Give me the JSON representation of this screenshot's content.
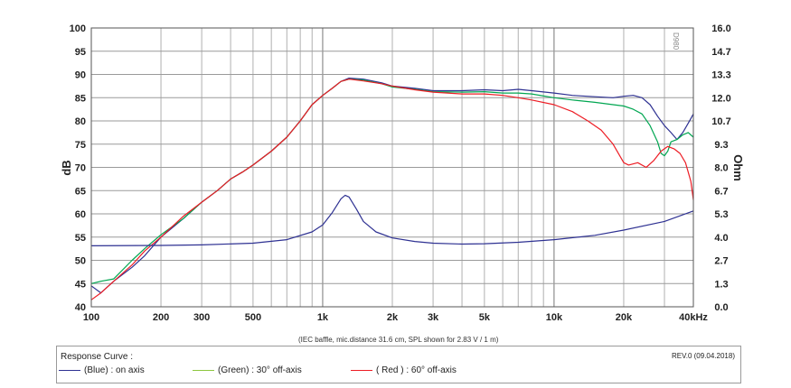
{
  "chart_data": {
    "type": "line",
    "x_scale": "log",
    "xlim": [
      100,
      40000
    ],
    "ylim_left": [
      40,
      100
    ],
    "ylim_right": [
      0.0,
      16.0
    ],
    "ylabel_left": "dB",
    "ylabel_right": "Ohm",
    "x_ticks": [
      {
        "v": 100,
        "label": "100"
      },
      {
        "v": 200,
        "label": "200"
      },
      {
        "v": 300,
        "label": "300"
      },
      {
        "v": 500,
        "label": "500"
      },
      {
        "v": 1000,
        "label": "1k"
      },
      {
        "v": 2000,
        "label": "2k"
      },
      {
        "v": 3000,
        "label": "3k"
      },
      {
        "v": 5000,
        "label": "5k"
      },
      {
        "v": 10000,
        "label": "10k"
      },
      {
        "v": 20000,
        "label": "20k"
      },
      {
        "v": 40000,
        "label": "40kHz"
      }
    ],
    "y_ticks_left": [
      "100",
      "95",
      "90",
      "85",
      "80",
      "75",
      "70",
      "65",
      "60",
      "55",
      "50",
      "45",
      "40"
    ],
    "y_ticks_right": [
      "16.0",
      "14.7",
      "13.3",
      "12.0",
      "10.7",
      "9.3",
      "8.0",
      "6.7",
      "5.3",
      "4.0",
      "2.7",
      "1.3",
      "0.0"
    ],
    "series": [
      {
        "name": "on axis",
        "color": "#2e3192",
        "axis": "left",
        "points": [
          [
            100,
            44.5
          ],
          [
            110,
            43
          ],
          [
            125,
            45.5
          ],
          [
            150,
            48.5
          ],
          [
            170,
            51
          ],
          [
            200,
            55
          ],
          [
            250,
            59
          ],
          [
            300,
            62.5
          ],
          [
            350,
            65
          ],
          [
            400,
            67.5
          ],
          [
            450,
            69
          ],
          [
            500,
            70.5
          ],
          [
            600,
            73.5
          ],
          [
            700,
            76.5
          ],
          [
            800,
            80
          ],
          [
            900,
            83.5
          ],
          [
            1000,
            85.5
          ],
          [
            1100,
            87
          ],
          [
            1200,
            88.5
          ],
          [
            1300,
            89.2
          ],
          [
            1500,
            89
          ],
          [
            1800,
            88.2
          ],
          [
            2000,
            87.5
          ],
          [
            2500,
            87
          ],
          [
            3000,
            86.5
          ],
          [
            4000,
            86.5
          ],
          [
            5000,
            86.7
          ],
          [
            6000,
            86.5
          ],
          [
            7000,
            86.8
          ],
          [
            8000,
            86.5
          ],
          [
            10000,
            86
          ],
          [
            12000,
            85.5
          ],
          [
            15000,
            85.2
          ],
          [
            18000,
            85
          ],
          [
            20000,
            85.3
          ],
          [
            22000,
            85.5
          ],
          [
            24000,
            85
          ],
          [
            26000,
            83.5
          ],
          [
            28000,
            81
          ],
          [
            30000,
            79
          ],
          [
            32000,
            77.5
          ],
          [
            34000,
            76
          ],
          [
            36000,
            77.5
          ],
          [
            38000,
            79.5
          ],
          [
            40000,
            81.5
          ]
        ]
      },
      {
        "name": "30° off-axis",
        "color": "#00a651",
        "axis": "left",
        "points": [
          [
            100,
            45
          ],
          [
            110,
            45.5
          ],
          [
            125,
            46
          ],
          [
            150,
            50
          ],
          [
            170,
            52.5
          ],
          [
            200,
            55.5
          ],
          [
            250,
            59
          ],
          [
            300,
            62.5
          ],
          [
            350,
            65
          ],
          [
            400,
            67.5
          ],
          [
            450,
            69
          ],
          [
            500,
            70.5
          ],
          [
            600,
            73.5
          ],
          [
            700,
            76.5
          ],
          [
            800,
            80
          ],
          [
            900,
            83.5
          ],
          [
            1000,
            85.5
          ],
          [
            1100,
            87
          ],
          [
            1200,
            88.5
          ],
          [
            1300,
            89
          ],
          [
            1500,
            88.8
          ],
          [
            1800,
            88
          ],
          [
            2000,
            87.3
          ],
          [
            2500,
            86.8
          ],
          [
            3000,
            86.3
          ],
          [
            4000,
            86.2
          ],
          [
            5000,
            86.3
          ],
          [
            6000,
            86
          ],
          [
            7000,
            86
          ],
          [
            8000,
            85.8
          ],
          [
            10000,
            85
          ],
          [
            12000,
            84.5
          ],
          [
            15000,
            84
          ],
          [
            18000,
            83.5
          ],
          [
            20000,
            83.2
          ],
          [
            22000,
            82.5
          ],
          [
            24000,
            81.5
          ],
          [
            26000,
            79
          ],
          [
            28000,
            75.5
          ],
          [
            29000,
            73
          ],
          [
            30000,
            72.5
          ],
          [
            31000,
            73.5
          ],
          [
            32000,
            75.5
          ],
          [
            34000,
            76
          ],
          [
            36000,
            77
          ],
          [
            38000,
            77.5
          ],
          [
            40000,
            76.5
          ]
        ]
      },
      {
        "name": "60° off-axis",
        "color": "#ed1c24",
        "axis": "left",
        "points": [
          [
            100,
            41.5
          ],
          [
            110,
            43
          ],
          [
            125,
            45.5
          ],
          [
            150,
            49
          ],
          [
            170,
            52
          ],
          [
            200,
            55
          ],
          [
            250,
            59.5
          ],
          [
            300,
            62.5
          ],
          [
            350,
            65
          ],
          [
            400,
            67.5
          ],
          [
            450,
            69
          ],
          [
            500,
            70.5
          ],
          [
            600,
            73.5
          ],
          [
            700,
            76.5
          ],
          [
            800,
            80
          ],
          [
            900,
            83.5
          ],
          [
            1000,
            85.5
          ],
          [
            1100,
            87
          ],
          [
            1200,
            88.5
          ],
          [
            1300,
            89
          ],
          [
            1500,
            88.6
          ],
          [
            1800,
            88
          ],
          [
            2000,
            87.5
          ],
          [
            2500,
            86.7
          ],
          [
            3000,
            86.2
          ],
          [
            4000,
            85.8
          ],
          [
            5000,
            85.8
          ],
          [
            6000,
            85.5
          ],
          [
            7000,
            85
          ],
          [
            8000,
            84.5
          ],
          [
            10000,
            83.5
          ],
          [
            12000,
            82
          ],
          [
            14000,
            80
          ],
          [
            16000,
            78
          ],
          [
            18000,
            75
          ],
          [
            20000,
            71
          ],
          [
            21000,
            70.5
          ],
          [
            23000,
            71
          ],
          [
            25000,
            70
          ],
          [
            27000,
            71.5
          ],
          [
            29000,
            73.5
          ],
          [
            31000,
            74.5
          ],
          [
            33000,
            74
          ],
          [
            35000,
            73
          ],
          [
            37000,
            71
          ],
          [
            39000,
            67
          ],
          [
            40000,
            63
          ]
        ]
      },
      {
        "name": "impedance",
        "color": "#2e3192",
        "axis": "right",
        "points": [
          [
            100,
            3.5
          ],
          [
            200,
            3.52
          ],
          [
            300,
            3.55
          ],
          [
            500,
            3.65
          ],
          [
            700,
            3.85
          ],
          [
            900,
            4.3
          ],
          [
            1000,
            4.7
          ],
          [
            1100,
            5.4
          ],
          [
            1200,
            6.2
          ],
          [
            1250,
            6.4
          ],
          [
            1300,
            6.3
          ],
          [
            1400,
            5.6
          ],
          [
            1500,
            4.9
          ],
          [
            1700,
            4.3
          ],
          [
            2000,
            3.95
          ],
          [
            2500,
            3.75
          ],
          [
            3000,
            3.65
          ],
          [
            4000,
            3.6
          ],
          [
            5000,
            3.62
          ],
          [
            7000,
            3.7
          ],
          [
            10000,
            3.85
          ],
          [
            15000,
            4.1
          ],
          [
            20000,
            4.4
          ],
          [
            30000,
            4.9
          ],
          [
            40000,
            5.5
          ]
        ]
      }
    ]
  },
  "notes": {
    "footnote": "(IEC baffle, mic.distance 31.6 cm, SPL shown for 2.83 V / 1 m)",
    "id_code": "D980"
  },
  "legend": {
    "title": "Response Curve :",
    "revision": "REV.0 (09.04.2018)",
    "items": [
      {
        "label": "(Blue)  : on axis",
        "color": "#2e3192"
      },
      {
        "label": "(Green) : 30° off-axis",
        "color": "#8dc63f"
      },
      {
        "label": "( Red ) : 60° off-axis",
        "color": "#ed1c24"
      }
    ]
  }
}
